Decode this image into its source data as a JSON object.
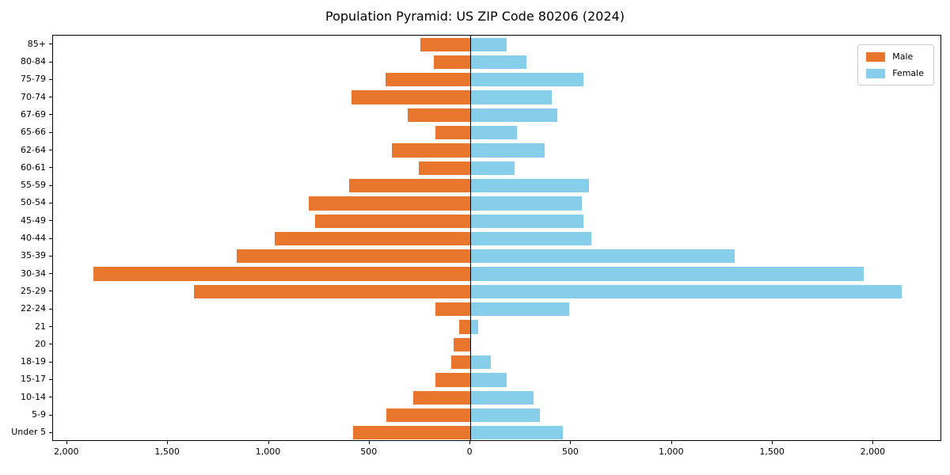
{
  "title": "Population Pyramid: US ZIP Code 80206 (2024)",
  "legend": {
    "male_label": "Male",
    "female_label": "Female"
  },
  "colors": {
    "male": "#e8762d",
    "female": "#87ceeb",
    "axis": "#000000",
    "legend_border": "#cccccc"
  },
  "chart_data": {
    "type": "bar",
    "subtype": "population-pyramid",
    "orientation": "horizontal",
    "title": "Population Pyramid: US ZIP Code 80206 (2024)",
    "row_order": "top-to-bottom",
    "categories": [
      "85+",
      "80-84",
      "75-79",
      "70-74",
      "67-69",
      "65-66",
      "62-64",
      "60-61",
      "55-59",
      "50-54",
      "45-49",
      "40-44",
      "35-39",
      "30-34",
      "25-29",
      "22-24",
      "21",
      "20",
      "18-19",
      "15-17",
      "10-14",
      "5-9",
      "Under 5"
    ],
    "series": [
      {
        "name": "Male",
        "side": "left",
        "color": "#e8762d",
        "values": [
          250,
          180,
          420,
          590,
          310,
          175,
          390,
          255,
          600,
          800,
          770,
          970,
          1160,
          1870,
          1370,
          175,
          55,
          85,
          95,
          175,
          285,
          415,
          580
        ]
      },
      {
        "name": "Female",
        "side": "right",
        "color": "#87ceeb",
        "values": [
          180,
          280,
          560,
          405,
          430,
          230,
          370,
          220,
          590,
          555,
          560,
          600,
          1310,
          1950,
          2140,
          490,
          40,
          0,
          100,
          180,
          315,
          345,
          460
        ]
      }
    ],
    "xlim": [
      -2070,
      2340
    ],
    "xticks": {
      "values": [
        -2000,
        -1500,
        -1000,
        -500,
        0,
        500,
        1000,
        1500,
        2000
      ],
      "labels": [
        "2,000",
        "1,500",
        "1,000",
        "500",
        "0",
        "500",
        "1,000",
        "1,500",
        "2,000"
      ]
    },
    "grid": false,
    "legend_position": "top-right",
    "xlabel": "",
    "ylabel": ""
  }
}
